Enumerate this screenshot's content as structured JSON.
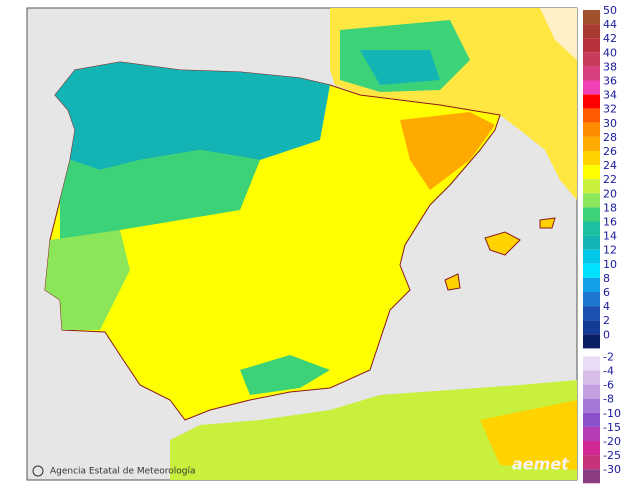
{
  "legend": {
    "items": [
      {
        "value": 50,
        "color": "#a0522d"
      },
      {
        "value": 44,
        "color": "#a93a32"
      },
      {
        "value": 42,
        "color": "#b8323c"
      },
      {
        "value": 40,
        "color": "#c83c5a"
      },
      {
        "value": 38,
        "color": "#d84080"
      },
      {
        "value": 36,
        "color": "#f040b4"
      },
      {
        "value": 34,
        "color": "#ff0000"
      },
      {
        "value": 32,
        "color": "#ff5a00"
      },
      {
        "value": 30,
        "color": "#ff8c00"
      },
      {
        "value": 28,
        "color": "#ffaa00"
      },
      {
        "value": 26,
        "color": "#ffd200"
      },
      {
        "value": 24,
        "color": "#ffff00"
      },
      {
        "value": 22,
        "color": "#c8f03c"
      },
      {
        "value": 20,
        "color": "#8ce65a"
      },
      {
        "value": 18,
        "color": "#3cd278"
      },
      {
        "value": 16,
        "color": "#1ebea0"
      },
      {
        "value": 14,
        "color": "#14b4b4"
      },
      {
        "value": 12,
        "color": "#00c8e6"
      },
      {
        "value": 10,
        "color": "#00e1ff"
      },
      {
        "value": 8,
        "color": "#14a0e6"
      },
      {
        "value": 6,
        "color": "#1e78d2"
      },
      {
        "value": 4,
        "color": "#1e50b4"
      },
      {
        "value": 2,
        "color": "#143c96"
      },
      {
        "value": 0,
        "color": "#0a1e64"
      },
      {
        "value": -2,
        "color": "#ebdcf5"
      },
      {
        "value": -4,
        "color": "#d7bee9"
      },
      {
        "value": -6,
        "color": "#c3a0e0"
      },
      {
        "value": -8,
        "color": "#a578d7"
      },
      {
        "value": -10,
        "color": "#8c50cd"
      },
      {
        "value": -15,
        "color": "#b43cb4"
      },
      {
        "value": -20,
        "color": "#d22896"
      },
      {
        "value": -25,
        "color": "#c83278"
      },
      {
        "value": -30,
        "color": "#8c3c82"
      }
    ]
  },
  "credit": "Agencia Estatal de Meteorología",
  "logo": "aemet"
}
